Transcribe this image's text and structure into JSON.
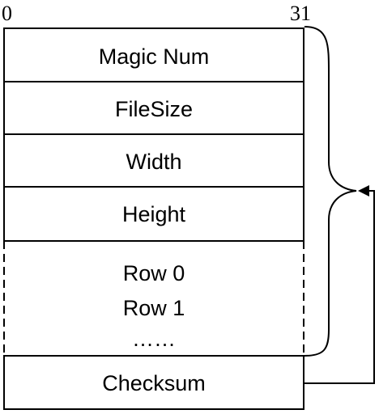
{
  "bit_labels": {
    "start": "0",
    "end": "31"
  },
  "fields": [
    {
      "label": "Magic Num"
    },
    {
      "label": "FileSize"
    },
    {
      "label": "Width"
    },
    {
      "label": "Height"
    }
  ],
  "rows_block": {
    "lines": [
      "Row 0",
      "Row 1",
      "……"
    ]
  },
  "checksum": {
    "label": "Checksum"
  },
  "colors": {
    "stroke": "#000000",
    "background": "#ffffff",
    "text": "#000000"
  }
}
